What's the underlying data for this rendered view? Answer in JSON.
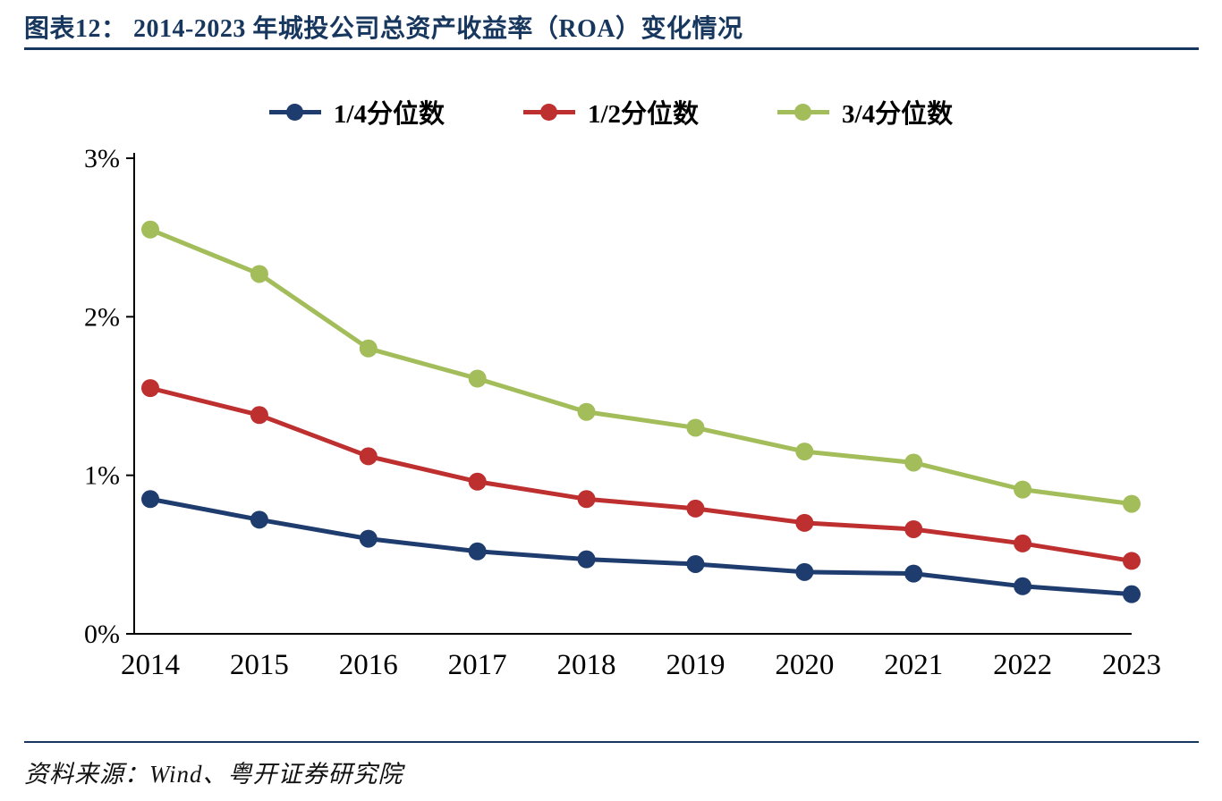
{
  "header": {
    "title": "图表12：  2014-2023 年城投公司总资产收益率（ROA）变化情况"
  },
  "footer": {
    "source": "资料来源：Wind、粤开证券研究院"
  },
  "colors": {
    "accent_navy": "#17375E",
    "axis_black": "#000000",
    "series_blue": "#1F3C6E",
    "series_red": "#BE2F2F",
    "series_green": "#A3BD5B"
  },
  "chart_data": {
    "type": "line",
    "title": "2014-2023 年城投公司总资产收益率（ROA）变化情况",
    "x": [
      2014,
      2015,
      2016,
      2017,
      2018,
      2019,
      2020,
      2021,
      2022,
      2023
    ],
    "series": [
      {
        "name": "1/4分位数",
        "color": "#1F3C6E",
        "values": [
          0.85,
          0.72,
          0.6,
          0.52,
          0.47,
          0.44,
          0.39,
          0.38,
          0.3,
          0.25
        ]
      },
      {
        "name": "1/2分位数",
        "color": "#BE2F2F",
        "values": [
          1.55,
          1.38,
          1.12,
          0.96,
          0.85,
          0.79,
          0.7,
          0.66,
          0.57,
          0.46
        ]
      },
      {
        "name": "3/4分位数",
        "color": "#A3BD5B",
        "values": [
          2.55,
          2.27,
          1.8,
          1.61,
          1.4,
          1.3,
          1.15,
          1.08,
          0.91,
          0.82
        ]
      }
    ],
    "ylim": [
      0,
      3
    ],
    "yticks": [
      "0%",
      "1%",
      "2%",
      "3%"
    ],
    "xlabel": "",
    "ylabel": "",
    "grid": false,
    "legend_position": "top"
  }
}
